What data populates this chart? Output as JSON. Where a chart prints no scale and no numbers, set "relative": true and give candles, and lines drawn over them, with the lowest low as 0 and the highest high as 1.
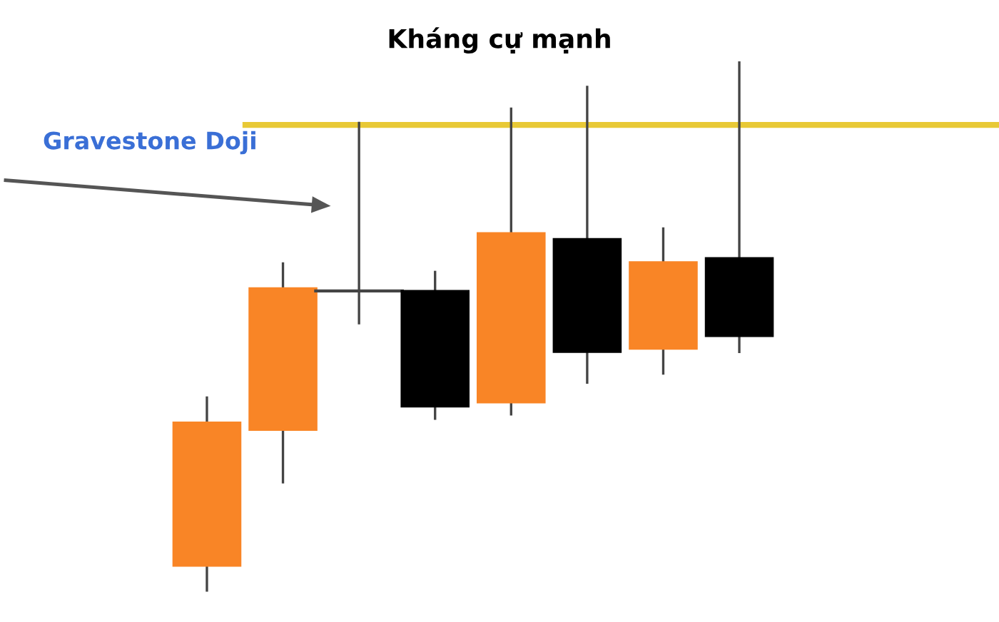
{
  "chart_data": {
    "type": "candlestick",
    "title": "Kháng cự mạnh",
    "relative": true,
    "categories": [
      null,
      null,
      null,
      null,
      null,
      null,
      null,
      null
    ],
    "ohlc": [
      [
        0.049,
        0.368,
        0,
        0.319
      ],
      [
        0.305,
        0.621,
        0.204,
        0.572
      ],
      [
        0.567,
        0.886,
        0.504,
        0.567
      ],
      [
        0.567,
        0.605,
        0.324,
        0.349
      ],
      [
        0.357,
        0.913,
        0.332,
        0.676
      ],
      [
        0.665,
        0.954,
        0.392,
        0.452
      ],
      [
        0.458,
        0.687,
        0.409,
        0.621
      ],
      [
        0.629,
        1,
        0.45,
        0.482
      ]
    ],
    "colors": [
      "#f98526",
      "#f98526",
      "#444444",
      "#000000",
      "#f98526",
      "#000000",
      "#f98526",
      "#000000"
    ],
    "ref_lines": [
      {
        "axis": "y",
        "value": 0.88,
        "color": "#e8c936",
        "line_style": "solid"
      }
    ],
    "annotations": [
      "Gravestone Doji"
    ]
  }
}
